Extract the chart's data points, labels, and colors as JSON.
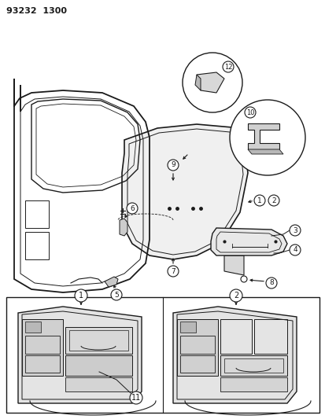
{
  "title": "93232  1300",
  "bg": "#ffffff",
  "lc": "#1a1a1a",
  "fig_w": 4.14,
  "fig_h": 5.33,
  "dpi": 100
}
